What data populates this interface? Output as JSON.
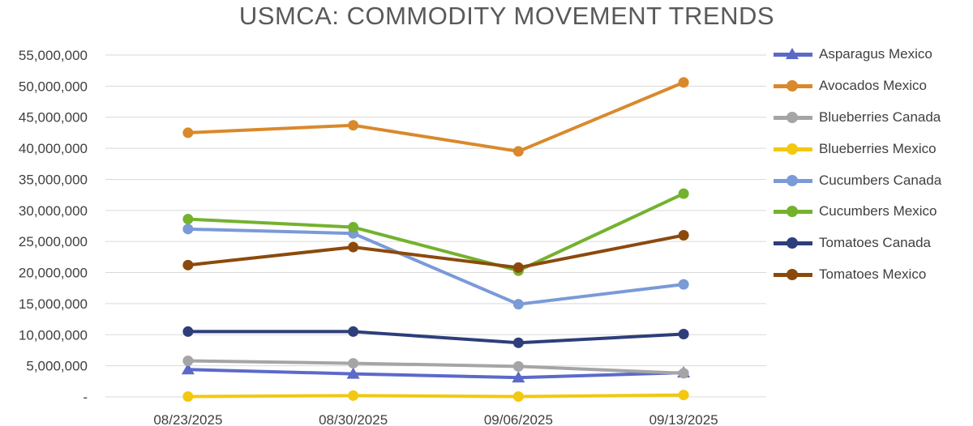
{
  "chart_data": {
    "type": "line",
    "title": "USMCA: COMMODITY MOVEMENT TRENDS",
    "x": [
      "08/23/2025",
      "08/30/2025",
      "09/06/2025",
      "09/13/2025"
    ],
    "ylim": [
      0,
      55000000
    ],
    "yticks": [
      {
        "value": 0,
        "label": "-"
      },
      {
        "value": 5000000,
        "label": "5,000,000"
      },
      {
        "value": 10000000,
        "label": "10,000,000"
      },
      {
        "value": 15000000,
        "label": "15,000,000"
      },
      {
        "value": 20000000,
        "label": "20,000,000"
      },
      {
        "value": 25000000,
        "label": "25,000,000"
      },
      {
        "value": 30000000,
        "label": "30,000,000"
      },
      {
        "value": 35000000,
        "label": "35,000,000"
      },
      {
        "value": 40000000,
        "label": "40,000,000"
      },
      {
        "value": 45000000,
        "label": "45,000,000"
      },
      {
        "value": 50000000,
        "label": "50,000,000"
      },
      {
        "value": 55000000,
        "label": "55,000,000"
      }
    ],
    "grid": "horizontal",
    "legend": "right",
    "series": [
      {
        "name": "Asparagus Mexico",
        "color": "#5b6ac9",
        "marker": "triangle",
        "values": [
          4400000,
          3700000,
          3100000,
          3900000
        ]
      },
      {
        "name": "Avocados Mexico",
        "color": "#d9892b",
        "marker": "circle",
        "values": [
          42500000,
          43700000,
          39500000,
          50600000
        ]
      },
      {
        "name": "Blueberries Canada",
        "color": "#a5a5a5",
        "marker": "circle",
        "values": [
          5800000,
          5400000,
          4900000,
          3800000
        ]
      },
      {
        "name": "Blueberries Mexico",
        "color": "#f2c811",
        "marker": "circle",
        "values": [
          50000,
          200000,
          50000,
          300000
        ]
      },
      {
        "name": "Cucumbers Canada",
        "color": "#7a9ad8",
        "marker": "circle",
        "values": [
          27000000,
          26300000,
          14900000,
          18100000
        ]
      },
      {
        "name": "Cucumbers Mexico",
        "color": "#74b22e",
        "marker": "circle",
        "values": [
          28600000,
          27300000,
          20300000,
          32700000
        ]
      },
      {
        "name": "Tomatoes Canada",
        "color": "#2d3e7a",
        "marker": "circle",
        "values": [
          10500000,
          10500000,
          8700000,
          10100000
        ]
      },
      {
        "name": "Tomatoes Mexico",
        "color": "#8b4a0c",
        "marker": "circle",
        "values": [
          21200000,
          24100000,
          20800000,
          26000000
        ]
      }
    ]
  }
}
